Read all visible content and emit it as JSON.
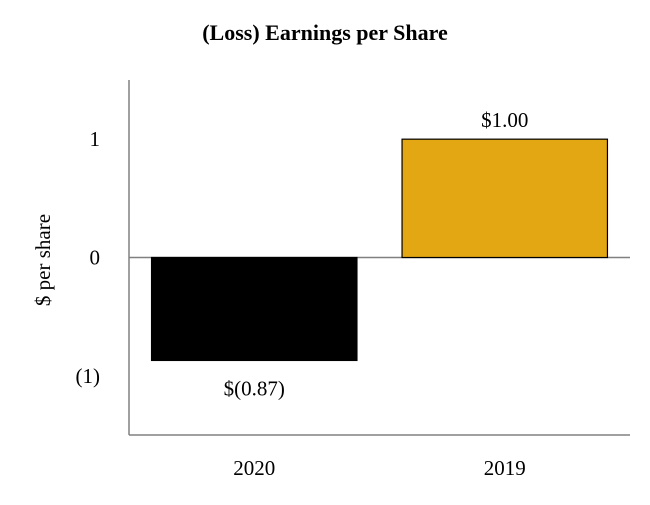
{
  "chart_data": {
    "type": "bar",
    "title": "(Loss) Earnings per Share",
    "xlabel": "",
    "ylabel": "$ per share",
    "categories": [
      "2020",
      "2019"
    ],
    "values": [
      -0.87,
      1.0
    ],
    "data_labels": [
      "$(0.87)",
      "$1.00"
    ],
    "colors": [
      "#000000",
      "#E3A714"
    ],
    "ylim": [
      -1.5,
      1.5
    ],
    "y_ticks": [
      1,
      0,
      -1
    ],
    "y_tick_labels": [
      "1",
      "0",
      "(1)"
    ],
    "grid": false,
    "legend": "none"
  }
}
